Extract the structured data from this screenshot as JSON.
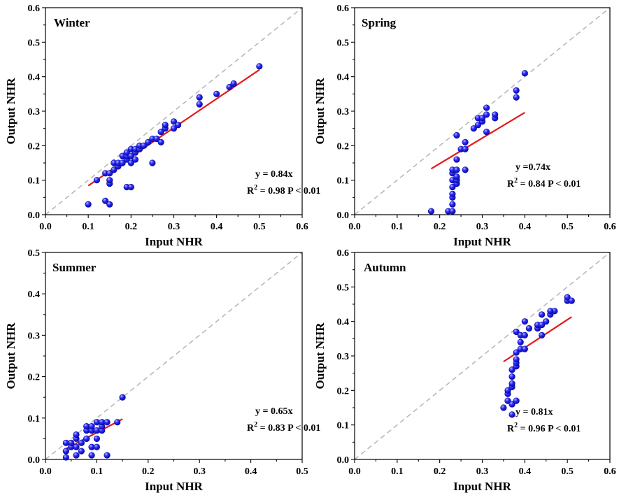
{
  "colors": {
    "point_fill": "#1a1aff",
    "point_highlight": "#9a9aff",
    "point_stroke": "#0b0b9a",
    "fit_line": "#e31a1c",
    "reference_line": "#b5b5b5"
  },
  "chart_data": [
    {
      "type": "scatter",
      "title": "Winter",
      "xlabel": "Input NHR",
      "ylabel": "Output NHR",
      "xlim": [
        0,
        0.6
      ],
      "ylim": [
        0,
        0.6
      ],
      "xticks": [
        "0.0",
        "0.1",
        "0.2",
        "0.3",
        "0.4",
        "0.5",
        "0.6"
      ],
      "yticks": [
        "0.0",
        "0.1",
        "0.2",
        "0.3",
        "0.4",
        "0.5",
        "0.6"
      ],
      "reference_line": "y = x",
      "fit": {
        "slope": 0.84,
        "x_range": [
          0.1,
          0.5
        ]
      },
      "equation": "y = 0.84x",
      "r2_label": "R",
      "r2_sup": "2",
      "r2_value": " = 0.98 P < 0.01",
      "points": [
        [
          0.1,
          0.03
        ],
        [
          0.12,
          0.1
        ],
        [
          0.14,
          0.12
        ],
        [
          0.14,
          0.04
        ],
        [
          0.15,
          0.03
        ],
        [
          0.15,
          0.09
        ],
        [
          0.15,
          0.1
        ],
        [
          0.15,
          0.12
        ],
        [
          0.16,
          0.13
        ],
        [
          0.16,
          0.15
        ],
        [
          0.17,
          0.14
        ],
        [
          0.17,
          0.15
        ],
        [
          0.18,
          0.15
        ],
        [
          0.18,
          0.17
        ],
        [
          0.19,
          0.16
        ],
        [
          0.19,
          0.17
        ],
        [
          0.19,
          0.18
        ],
        [
          0.19,
          0.08
        ],
        [
          0.2,
          0.08
        ],
        [
          0.2,
          0.15
        ],
        [
          0.2,
          0.17
        ],
        [
          0.2,
          0.19
        ],
        [
          0.21,
          0.16
        ],
        [
          0.21,
          0.18
        ],
        [
          0.21,
          0.19
        ],
        [
          0.22,
          0.19
        ],
        [
          0.22,
          0.2
        ],
        [
          0.23,
          0.2
        ],
        [
          0.24,
          0.21
        ],
        [
          0.25,
          0.22
        ],
        [
          0.25,
          0.15
        ],
        [
          0.26,
          0.22
        ],
        [
          0.27,
          0.21
        ],
        [
          0.27,
          0.24
        ],
        [
          0.28,
          0.25
        ],
        [
          0.28,
          0.26
        ],
        [
          0.3,
          0.27
        ],
        [
          0.3,
          0.25
        ],
        [
          0.31,
          0.26
        ],
        [
          0.36,
          0.32
        ],
        [
          0.36,
          0.34
        ],
        [
          0.4,
          0.35
        ],
        [
          0.43,
          0.37
        ],
        [
          0.44,
          0.38
        ],
        [
          0.5,
          0.43
        ]
      ]
    },
    {
      "type": "scatter",
      "title": "Spring",
      "xlabel": "Input NHR",
      "ylabel": "Output NHR",
      "xlim": [
        0,
        0.6
      ],
      "ylim": [
        0,
        0.6
      ],
      "xticks": [
        "0.0",
        "0.1",
        "0.2",
        "0.3",
        "0.4",
        "0.5",
        "0.6"
      ],
      "yticks": [
        "0.0",
        "0.1",
        "0.2",
        "0.3",
        "0.4",
        "0.5",
        "0.6"
      ],
      "reference_line": "y = x",
      "fit": {
        "slope": 0.74,
        "x_range": [
          0.18,
          0.4
        ]
      },
      "equation": "y =0.74x",
      "r2_label": "R",
      "r2_sup": "2",
      "r2_value": " = 0.84 P < 0.01",
      "points": [
        [
          0.18,
          0.01
        ],
        [
          0.22,
          0.01
        ],
        [
          0.23,
          0.01
        ],
        [
          0.23,
          0.03
        ],
        [
          0.23,
          0.05
        ],
        [
          0.23,
          0.06
        ],
        [
          0.23,
          0.08
        ],
        [
          0.23,
          0.1
        ],
        [
          0.23,
          0.12
        ],
        [
          0.23,
          0.13
        ],
        [
          0.24,
          0.09
        ],
        [
          0.24,
          0.1
        ],
        [
          0.24,
          0.11
        ],
        [
          0.24,
          0.13
        ],
        [
          0.24,
          0.16
        ],
        [
          0.24,
          0.23
        ],
        [
          0.25,
          0.19
        ],
        [
          0.26,
          0.13
        ],
        [
          0.26,
          0.19
        ],
        [
          0.26,
          0.21
        ],
        [
          0.28,
          0.25
        ],
        [
          0.29,
          0.26
        ],
        [
          0.29,
          0.28
        ],
        [
          0.3,
          0.27
        ],
        [
          0.3,
          0.28
        ],
        [
          0.31,
          0.29
        ],
        [
          0.31,
          0.31
        ],
        [
          0.31,
          0.24
        ],
        [
          0.33,
          0.28
        ],
        [
          0.33,
          0.29
        ],
        [
          0.38,
          0.34
        ],
        [
          0.38,
          0.36
        ],
        [
          0.4,
          0.41
        ]
      ]
    },
    {
      "type": "scatter",
      "title": "Summer",
      "xlabel": "Input NHR",
      "ylabel": "Output NHR",
      "xlim": [
        0,
        0.5
      ],
      "ylim": [
        0,
        0.5
      ],
      "xticks": [
        "0.0",
        "0.1",
        "0.2",
        "0.3",
        "0.4",
        "0.5"
      ],
      "yticks": [
        "0.0",
        "0.1",
        "0.2",
        "0.3",
        "0.4",
        "0.5"
      ],
      "reference_line": "y = x",
      "fit": {
        "slope": 0.65,
        "x_range": [
          0.04,
          0.15
        ]
      },
      "equation": "y = 0.65x",
      "r2_label": "R",
      "r2_sup": "2",
      "r2_value": " = 0.83 P < 0.01",
      "points": [
        [
          0.04,
          0.005
        ],
        [
          0.04,
          0.02
        ],
        [
          0.04,
          0.04
        ],
        [
          0.05,
          0.03
        ],
        [
          0.05,
          0.04
        ],
        [
          0.06,
          0.01
        ],
        [
          0.06,
          0.03
        ],
        [
          0.06,
          0.05
        ],
        [
          0.06,
          0.06
        ],
        [
          0.07,
          0.02
        ],
        [
          0.07,
          0.04
        ],
        [
          0.08,
          0.05
        ],
        [
          0.08,
          0.07
        ],
        [
          0.08,
          0.08
        ],
        [
          0.09,
          0.01
        ],
        [
          0.09,
          0.03
        ],
        [
          0.09,
          0.07
        ],
        [
          0.09,
          0.08
        ],
        [
          0.1,
          0.03
        ],
        [
          0.1,
          0.05
        ],
        [
          0.1,
          0.07
        ],
        [
          0.1,
          0.09
        ],
        [
          0.11,
          0.07
        ],
        [
          0.11,
          0.08
        ],
        [
          0.11,
          0.09
        ],
        [
          0.12,
          0.01
        ],
        [
          0.12,
          0.09
        ],
        [
          0.14,
          0.09
        ],
        [
          0.15,
          0.15
        ],
        [
          0.08,
          0.05
        ]
      ]
    },
    {
      "type": "scatter",
      "title": "Autumn",
      "xlabel": "Input NHR",
      "ylabel": "Output NHR",
      "xlim": [
        0,
        0.6
      ],
      "ylim": [
        0,
        0.6
      ],
      "xticks": [
        "0.0",
        "0.1",
        "0.2",
        "0.3",
        "0.4",
        "0.5",
        "0.6"
      ],
      "yticks": [
        "0.0",
        "0.1",
        "0.2",
        "0.3",
        "0.4",
        "0.5",
        "0.6"
      ],
      "reference_line": "y = x",
      "fit": {
        "slope": 0.81,
        "x_range": [
          0.35,
          0.51
        ]
      },
      "equation": "y = 0.81x",
      "r2_label": "R",
      "r2_sup": "2",
      "r2_value": " = 0.96 P < 0.01",
      "points": [
        [
          0.35,
          0.15
        ],
        [
          0.36,
          0.17
        ],
        [
          0.36,
          0.19
        ],
        [
          0.36,
          0.2
        ],
        [
          0.37,
          0.13
        ],
        [
          0.37,
          0.16
        ],
        [
          0.37,
          0.21
        ],
        [
          0.37,
          0.22
        ],
        [
          0.37,
          0.24
        ],
        [
          0.37,
          0.26
        ],
        [
          0.38,
          0.17
        ],
        [
          0.38,
          0.27
        ],
        [
          0.38,
          0.28
        ],
        [
          0.38,
          0.29
        ],
        [
          0.38,
          0.31
        ],
        [
          0.38,
          0.37
        ],
        [
          0.39,
          0.32
        ],
        [
          0.39,
          0.34
        ],
        [
          0.39,
          0.36
        ],
        [
          0.4,
          0.32
        ],
        [
          0.4,
          0.36
        ],
        [
          0.4,
          0.4
        ],
        [
          0.41,
          0.38
        ],
        [
          0.43,
          0.38
        ],
        [
          0.43,
          0.39
        ],
        [
          0.44,
          0.36
        ],
        [
          0.44,
          0.39
        ],
        [
          0.44,
          0.42
        ],
        [
          0.45,
          0.4
        ],
        [
          0.46,
          0.42
        ],
        [
          0.47,
          0.43
        ],
        [
          0.5,
          0.46
        ],
        [
          0.5,
          0.47
        ],
        [
          0.51,
          0.46
        ],
        [
          0.46,
          0.43
        ]
      ]
    }
  ]
}
